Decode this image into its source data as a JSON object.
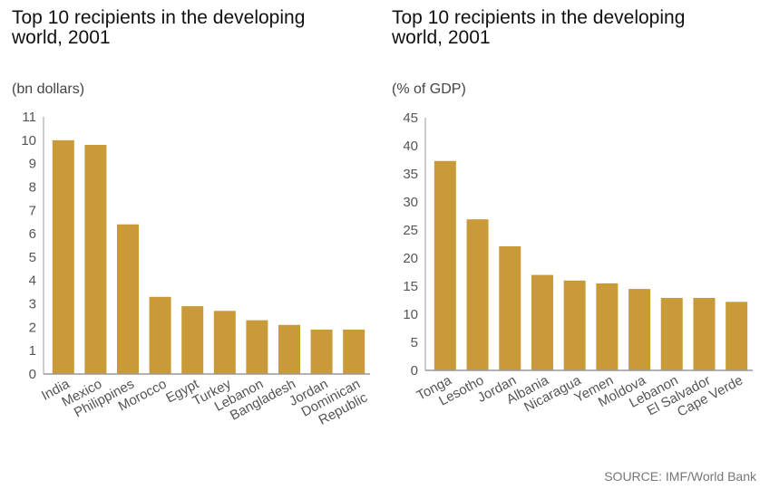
{
  "chart_data": [
    {
      "type": "bar",
      "title": "Top 10 recipients in the developing world, 2001",
      "ylabel": "(bn dollars)",
      "categories": [
        "India",
        "Mexico",
        "Philippines",
        "Morocco",
        "Egypt",
        "Turkey",
        "Lebanon",
        "Bangladesh",
        "Jordan",
        "Dominican Republic"
      ],
      "values": [
        10.0,
        9.8,
        6.4,
        3.3,
        2.9,
        2.7,
        2.3,
        2.1,
        1.9,
        1.9
      ],
      "ylim": [
        0,
        11
      ],
      "yticks": [
        0,
        1,
        2,
        3,
        4,
        5,
        6,
        7,
        8,
        9,
        10,
        11
      ],
      "grid": false,
      "bar_color": "#C89A38"
    },
    {
      "type": "bar",
      "title": "Top 10 recipients in the developing world, 2001",
      "ylabel": "(% of GDP)",
      "categories": [
        "Tonga",
        "Lesotho",
        "Jordan",
        "Albania",
        "Nicaragua",
        "Yemen",
        "Moldova",
        "Lebanon",
        "El Salvador",
        "Cape Verde"
      ],
      "values": [
        37.3,
        26.9,
        22.1,
        17.0,
        16.0,
        15.5,
        14.5,
        12.9,
        12.9,
        12.2
      ],
      "ylim": [
        0,
        45
      ],
      "yticks": [
        0,
        5,
        10,
        15,
        20,
        25,
        30,
        35,
        40,
        45
      ],
      "grid": false,
      "bar_color": "#C89A38"
    }
  ],
  "source": "SOURCE: IMF/World Bank"
}
